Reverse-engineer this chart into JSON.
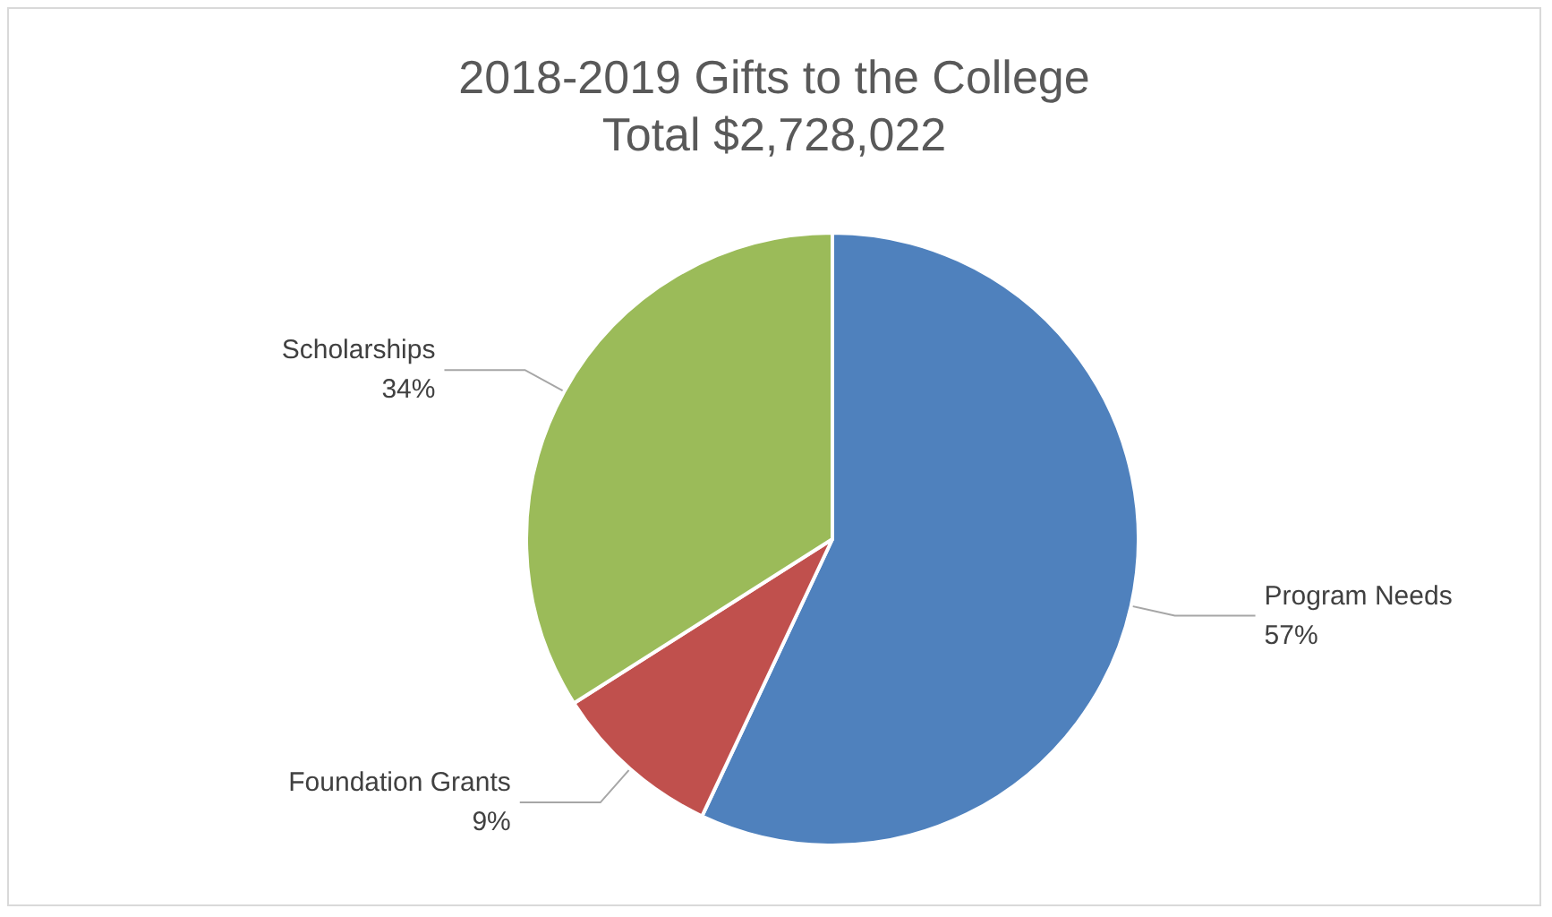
{
  "chart_data": {
    "type": "pie",
    "title": "2018-2019 Gifts to the College",
    "subtitle": "Total $2,728,022",
    "categories": [
      "Program Needs",
      "Foundation Grants",
      "Scholarships"
    ],
    "values": [
      57,
      9,
      34
    ],
    "value_labels": [
      "57%",
      "9%",
      "34%"
    ],
    "colors": [
      "#4f81bd",
      "#c0504d",
      "#9bbb59"
    ],
    "legend": false
  }
}
